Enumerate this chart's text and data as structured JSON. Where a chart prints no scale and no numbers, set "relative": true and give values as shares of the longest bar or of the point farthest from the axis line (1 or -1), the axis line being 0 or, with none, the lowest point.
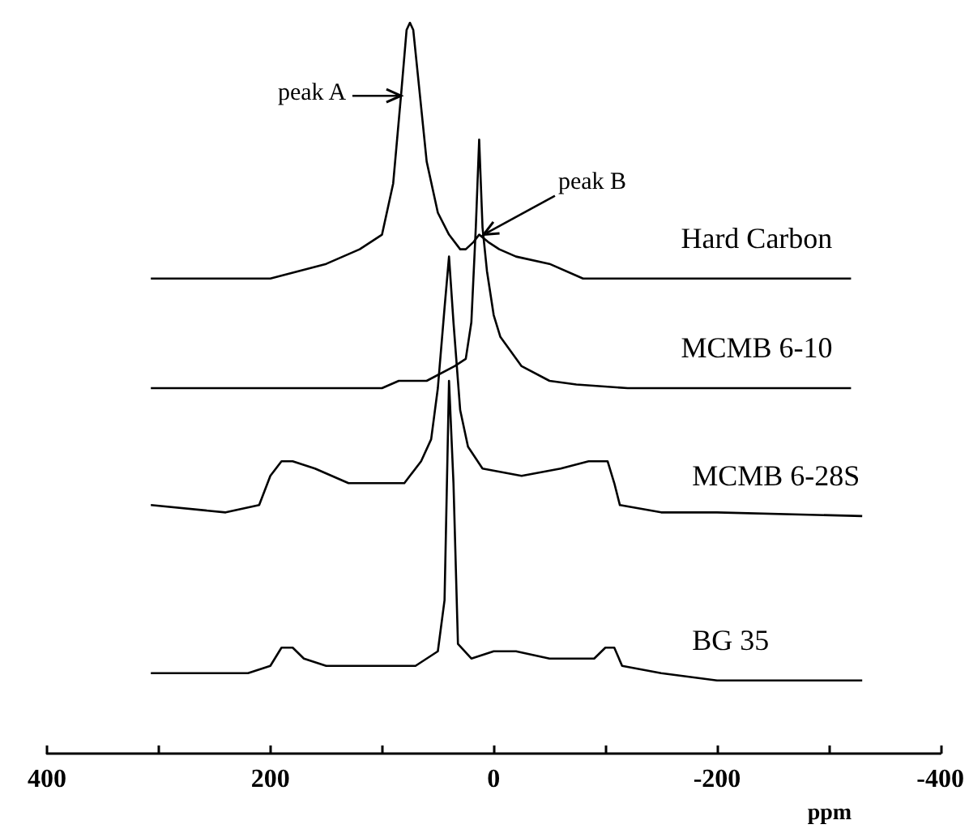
{
  "chart_data": {
    "type": "line",
    "relative": true,
    "xlabel": "ppm",
    "xlim": [
      400,
      -400
    ],
    "xticks": [
      400,
      {
        "value": 300,
        "label": null
      },
      200,
      {
        "value": 100,
        "label": null
      },
      0,
      {
        "value": -100,
        "label": null
      },
      -200,
      {
        "value": -300,
        "label": null
      },
      -400
    ],
    "grid": false,
    "legend": false,
    "marker": "none",
    "line_style": "solid",
    "annotations": [
      {
        "text": "peak A",
        "x": 83,
        "y": 0.9
      },
      {
        "text": "peak B",
        "x": 9,
        "y": 0.71
      }
    ],
    "series": [
      {
        "name": "Hard Carbon",
        "color": "#000000",
        "x": [
          307,
          200,
          150,
          120,
          100,
          90,
          83,
          78,
          75,
          72,
          66,
          60,
          50,
          40,
          30,
          25,
          18,
          13,
          5,
          -5,
          -20,
          -50,
          -80,
          -150,
          -320
        ],
        "values": [
          0.65,
          0.65,
          0.67,
          0.69,
          0.71,
          0.78,
          0.9,
          0.99,
          1.0,
          0.99,
          0.9,
          0.81,
          0.74,
          0.71,
          0.69,
          0.69,
          0.7,
          0.71,
          0.7,
          0.69,
          0.68,
          0.67,
          0.65,
          0.65,
          0.65
        ]
      },
      {
        "name": "MCMB 6-10",
        "color": "#000000",
        "x": [
          307,
          150,
          100,
          85,
          60,
          35,
          25,
          20,
          16,
          13,
          10,
          6,
          0,
          -6,
          -25,
          -50,
          -74,
          -120,
          -320
        ],
        "values": [
          0.5,
          0.5,
          0.5,
          0.51,
          0.51,
          0.53,
          0.54,
          0.59,
          0.72,
          0.84,
          0.72,
          0.66,
          0.6,
          0.57,
          0.53,
          0.51,
          0.505,
          0.5,
          0.5
        ]
      },
      {
        "name": "MCMB 6-28S",
        "color": "#000000",
        "x": [
          307,
          240,
          210,
          200,
          190,
          180,
          160,
          130,
          100,
          80,
          65,
          56,
          50,
          44,
          40,
          36,
          30,
          23,
          10,
          -25,
          -60,
          -85,
          -102,
          -108,
          -113,
          -150,
          -200,
          -330
        ],
        "values": [
          0.34,
          0.33,
          0.34,
          0.38,
          0.4,
          0.4,
          0.39,
          0.37,
          0.37,
          0.37,
          0.4,
          0.43,
          0.5,
          0.61,
          0.68,
          0.59,
          0.47,
          0.42,
          0.39,
          0.38,
          0.39,
          0.4,
          0.4,
          0.37,
          0.34,
          0.33,
          0.33,
          0.325
        ]
      },
      {
        "name": "BG 35",
        "color": "#000000",
        "x": [
          307,
          220,
          200,
          190,
          180,
          170,
          150,
          100,
          70,
          50,
          44,
          40,
          36,
          32,
          20,
          0,
          -20,
          -50,
          -90,
          -100,
          -108,
          -115,
          -150,
          -200,
          -330
        ],
        "values": [
          0.11,
          0.11,
          0.12,
          0.145,
          0.145,
          0.13,
          0.12,
          0.12,
          0.12,
          0.14,
          0.21,
          0.51,
          0.37,
          0.15,
          0.13,
          0.14,
          0.14,
          0.13,
          0.13,
          0.145,
          0.145,
          0.12,
          0.11,
          0.1,
          0.1
        ]
      }
    ]
  }
}
